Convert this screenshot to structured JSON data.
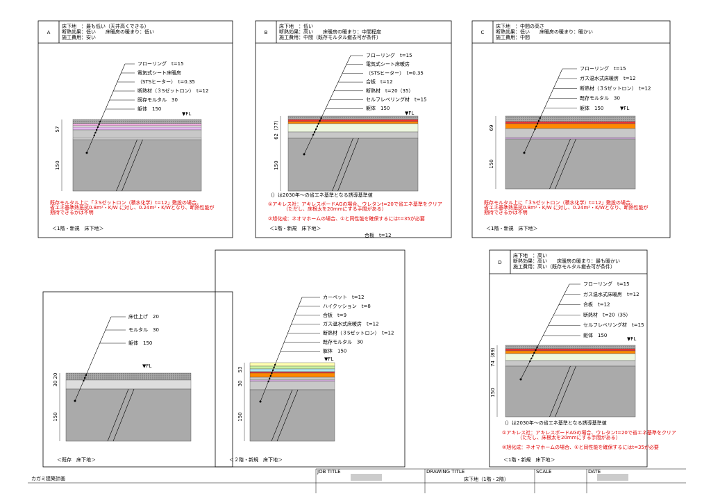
{
  "panels": [
    {
      "label": "A",
      "notes": [
        "床下地　：最も低い（天井高くできる）",
        "断熱効果：低い　　床暖房の暖まり：低い",
        "施工費用：安い"
      ],
      "layers": [
        "フローリング　t=15",
        "電気式シート床暖房",
        "（STSヒーター）　t=0.35",
        "断熱材（３Sゼットロン）　t=12",
        "既存モルタル　30",
        "躯体　150"
      ],
      "fl": "▼FL",
      "dims": [
        "57",
        "150"
      ],
      "red": [
        "既存モルタル上に「３Sゼットロン（積水化学）t=12」敷設の場合。",
        "省エネ基準熱抵抗0.8m²・K/W に対し、0.24m²・K/Wとなり、断熱性能が",
        "期待できるかは不明"
      ],
      "caption": "＜1階・新規　床下地＞"
    },
    {
      "label": "B",
      "notes": [
        "床下地　：低い",
        "断熱効果：高い　　床暖房の暖まり：中間程度",
        "施工費用：中間（既存モルタル撤去可が条件）"
      ],
      "layers": [
        "フローリング　t=15",
        "電気式シート床暖房",
        "（STSヒーター）　t=0.35",
        "合板　t=12",
        "断熱材　t=20（35）",
        "セルフレベリング材　t=15",
        "躯体　150"
      ],
      "fl": "▼FL",
      "dims": [
        "62（77）",
        "150"
      ],
      "footnote": "（）は2030年～の省エネ基準となる誘導基準値",
      "red": [
        "①アキレス社：アキレスボードAGの場合、ウレタンt=20で省エネ基準をクリア",
        "（ただし、床根太を20mmにする手間がある）",
        "②旭化成：ネオマホームの場合、①と同性能を確保するにはt=35が必要"
      ],
      "caption": "＜1階・新規　床下地＞",
      "extra": "合板　t=12"
    },
    {
      "label": "C",
      "notes": [
        "床下地　：中間の高さ",
        "断熱効果：低い　　床暖房の暖まり：暖かい",
        "施工費用：中間"
      ],
      "layers": [
        "フローリング　t=15",
        "ガス温水式床暖房　t=12",
        "断熱材（３Sゼットロン）　t=12",
        "既存モルタル　30",
        "躯体　150"
      ],
      "fl": "▼FL",
      "dims": [
        "69",
        "150"
      ],
      "red": [
        "既存モルタル上に「３Sゼットロン（積水化学）t=12」敷設の場合。",
        "省エネ基準熱抵抗0.8m²・K/W に対し、0.24m²・K/Wとなり、断熱性能が",
        "期待できるかは不明"
      ],
      "caption": "＜1階・新規　床下地＞"
    },
    {
      "layers": [
        "床仕上げ　20",
        "モルタル　30",
        "躯体　150"
      ],
      "fl": "▼FL",
      "dims": [
        "30",
        "20",
        "150"
      ],
      "caption": "＜既存　床下地＞"
    },
    {
      "layers": [
        "カーペット　t=12",
        "ハイクッション　t=8",
        "合板　t=9",
        "ガス温水式床暖房　t=12",
        "断熱材（３Sゼットロン）　t=12",
        "既存モルタル　30",
        "躯体　150"
      ],
      "fl": "▼FL",
      "dims": [
        "30",
        "53",
        "150"
      ],
      "caption": "＜２階・新規　床下地＞"
    },
    {
      "label": "D",
      "notes": [
        "床下地　：高い",
        "断熱効果：高い　　床暖房の暖まり：最も暖かい",
        "施工費用：高い（既存モルタル撤去可が条件）"
      ],
      "layers": [
        "フローリング　t=15",
        "ガス温水式床暖房　t=12",
        "合板　t=12",
        "断熱材　t=20（35）",
        "セルフレベリング材　t=15",
        "躯体　150"
      ],
      "fl": "▼FL",
      "dims": [
        "74（89）",
        "150"
      ],
      "footnote": "（）は2030年～の省エネ基準となる誘導基準値",
      "red": [
        "①アキレス社：アキレスボードAGの場合、ウレタンt=20で省エネ基準をクリア",
        "（ただし、床根太を20mmにする手間がある）",
        "②旭化成：ネオマホームの場合、①と同性能を確保するにはt=35が必要"
      ],
      "caption": "＜1階・新規　床下地＞"
    }
  ],
  "footer": {
    "company": "カガミ建築計画",
    "job_title": "JOB TITLE",
    "drawing_title": "DRAWING TITLE",
    "drawing": "床下地（1階・2階）",
    "scale": "SCALE",
    "date": "DATE"
  }
}
